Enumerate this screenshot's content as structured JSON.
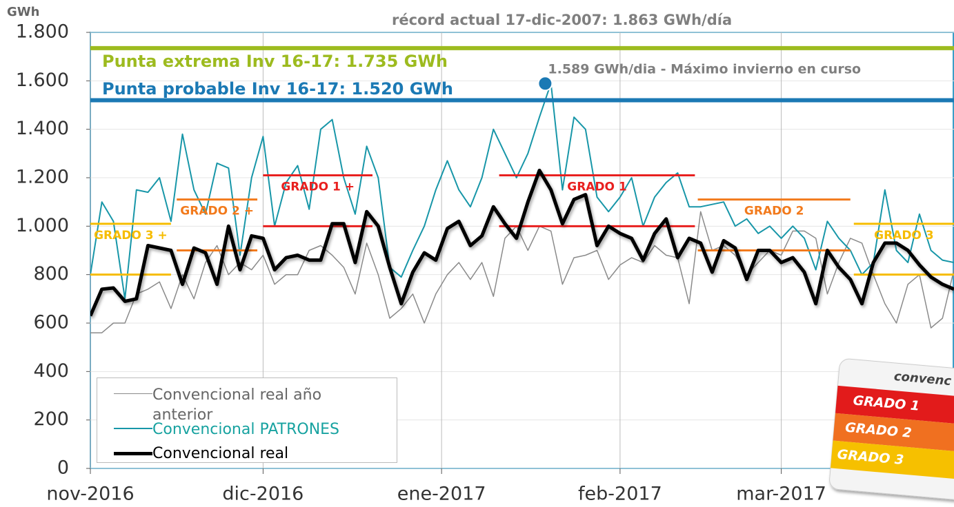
{
  "chart_data": {
    "type": "line",
    "title": "récord actual 17-dic-2007:  1.863 GWh/día",
    "y_axis_label": "GWh",
    "xlim": [
      0,
      150
    ],
    "xticks": [
      {
        "value": 0,
        "label": "nov-2016"
      },
      {
        "value": 30,
        "label": "dic-2016"
      },
      {
        "value": 61,
        "label": "ene-2017"
      },
      {
        "value": 92,
        "label": "feb-2017"
      },
      {
        "value": 120,
        "label": "mar-2017"
      }
    ],
    "ylim": [
      0,
      1800
    ],
    "yticks": [
      0,
      200,
      400,
      600,
      800,
      {
        "value": 1000,
        "label": "1.000"
      },
      {
        "value": 1200,
        "label": "1.200"
      },
      {
        "value": 1400,
        "label": "1.400"
      },
      {
        "value": 1600,
        "label": "1.600"
      },
      {
        "value": 1800,
        "label": "1.800"
      }
    ],
    "grid": true,
    "legend": "lower left",
    "series": [
      {
        "name": "Convencional real año anterior",
        "color": "#8a8a8a",
        "width": 1.5,
        "values": [
          560,
          560,
          600,
          600,
          720,
          740,
          770,
          660,
          800,
          700,
          850,
          920,
          800,
          850,
          820,
          880,
          760,
          800,
          800,
          900,
          920,
          880,
          830,
          720,
          930,
          800,
          620,
          660,
          720,
          600,
          720,
          800,
          850,
          780,
          850,
          710,
          950,
          1000,
          900,
          1000,
          980,
          760,
          870,
          880,
          900,
          780,
          840,
          870,
          850,
          920,
          880,
          870,
          680,
          1060,
          900,
          920,
          880,
          800,
          850,
          900,
          880,
          980,
          980,
          950,
          720,
          850,
          950,
          930,
          800,
          680,
          600,
          760,
          800,
          580,
          620,
          820
        ]
      },
      {
        "name": "Convencional PATRONES",
        "color": "#1796a8",
        "width": 2,
        "values": [
          800,
          1100,
          1020,
          700,
          1150,
          1140,
          1200,
          1020,
          1380,
          1150,
          1050,
          1260,
          1240,
          880,
          1200,
          1370,
          1000,
          1180,
          1250,
          1070,
          1400,
          1440,
          1200,
          1050,
          1330,
          1200,
          830,
          790,
          900,
          1000,
          1150,
          1270,
          1150,
          1080,
          1200,
          1400,
          1300,
          1200,
          1300,
          1450,
          1590,
          1150,
          1450,
          1400,
          1120,
          1060,
          1120,
          1200,
          1000,
          1120,
          1180,
          1220,
          1080,
          1080,
          1090,
          1100,
          1000,
          1030,
          970,
          1000,
          950,
          1000,
          950,
          820,
          1020,
          950,
          900,
          800,
          850,
          1150,
          900,
          850,
          1050,
          900,
          860,
          850
        ]
      },
      {
        "name": "Convencional real",
        "color": "#000000",
        "width": 5,
        "values": [
          630,
          740,
          745,
          690,
          700,
          920,
          910,
          900,
          760,
          910,
          890,
          760,
          1000,
          820,
          960,
          950,
          820,
          870,
          880,
          860,
          860,
          1010,
          1010,
          850,
          1060,
          1000,
          830,
          680,
          810,
          890,
          860,
          990,
          1020,
          920,
          960,
          1080,
          1010,
          950,
          1100,
          1230,
          1150,
          1010,
          1110,
          1130,
          920,
          1000,
          970,
          950,
          860,
          970,
          1030,
          870,
          950,
          930,
          810,
          940,
          910,
          780,
          900,
          900,
          850,
          870,
          810,
          680,
          900,
          830,
          780,
          680,
          850,
          930,
          930,
          900,
          840,
          790,
          760,
          740
        ]
      }
    ],
    "reference_lines": [
      {
        "label": "Punta extrema Inv 16-17: 1.735 GWh",
        "value": 1735,
        "color": "#9dbb1f"
      },
      {
        "label": "Punta probable  Inv 16-17: 1.520 GWh",
        "value": 1520,
        "color": "#1b79b4"
      }
    ],
    "bands": [
      {
        "label": "GRADO 3 +",
        "color": "#f6bc00",
        "values": [
          800,
          1010
        ],
        "start": 0,
        "end": 14
      },
      {
        "label": "GRADO 2 +",
        "color": "#f27a1c",
        "values": [
          900,
          1110
        ],
        "start": 15,
        "end": 29
      },
      {
        "label": "GRADO 1 +",
        "color": "#e8201f",
        "values": [
          1000,
          1210
        ],
        "start": 30,
        "end": 49
      },
      {
        "label": "GRADO 1",
        "color": "#e8201f",
        "values": [
          1000,
          1210
        ],
        "start": 71,
        "end": 105
      },
      {
        "label": "GRADO 2",
        "color": "#f27a1c",
        "values": [
          900,
          1110
        ],
        "start": 105.5,
        "end": 132
      },
      {
        "label": "GRADO 3",
        "color": "#f6bc00",
        "values": [
          800,
          1010
        ],
        "start": 132.6,
        "end": 150
      }
    ],
    "annotation": {
      "label": "1.589 GWh/dia - Máximo invierno en curso",
      "x": 79,
      "value": 1589,
      "color": "#1b79b4"
    },
    "badge": {
      "title": "convenc",
      "items": [
        "GRADO 1",
        "GRADO 2",
        "GRADO 3"
      ]
    }
  }
}
